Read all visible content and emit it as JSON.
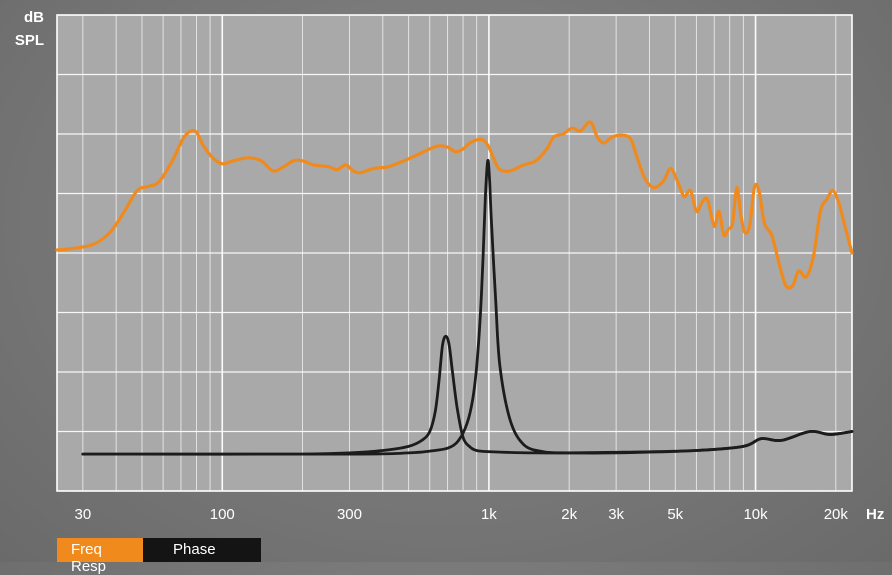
{
  "chart_data": {
    "type": "line",
    "xscale": "log",
    "xlim": [
      24,
      23000
    ],
    "ylim": [
      0,
      8
    ],
    "grid": true,
    "ylabel_lines": [
      "dB",
      "SPL"
    ],
    "xunit": "Hz",
    "xticks": [
      {
        "value": 30,
        "label": "30"
      },
      {
        "value": 100,
        "label": "100"
      },
      {
        "value": 300,
        "label": "300"
      },
      {
        "value": 1000,
        "label": "1k"
      },
      {
        "value": 2000,
        "label": "2k"
      },
      {
        "value": 3000,
        "label": "3k"
      },
      {
        "value": 5000,
        "label": "5k"
      },
      {
        "value": 10000,
        "label": "10k"
      },
      {
        "value": 20000,
        "label": "20k"
      }
    ],
    "series": [
      {
        "color": "#f08a1c",
        "points": [
          [
            24,
            4.05
          ],
          [
            28,
            4.08
          ],
          [
            33,
            4.15
          ],
          [
            38,
            4.35
          ],
          [
            43,
            4.7
          ],
          [
            48,
            5.05
          ],
          [
            53,
            5.12
          ],
          [
            58,
            5.2
          ],
          [
            65,
            5.55
          ],
          [
            72,
            5.95
          ],
          [
            79,
            6.05
          ],
          [
            85,
            5.8
          ],
          [
            92,
            5.6
          ],
          [
            100,
            5.5
          ],
          [
            110,
            5.55
          ],
          [
            125,
            5.6
          ],
          [
            140,
            5.55
          ],
          [
            155,
            5.38
          ],
          [
            170,
            5.45
          ],
          [
            185,
            5.55
          ],
          [
            200,
            5.55
          ],
          [
            220,
            5.48
          ],
          [
            250,
            5.45
          ],
          [
            270,
            5.4
          ],
          [
            290,
            5.48
          ],
          [
            310,
            5.38
          ],
          [
            330,
            5.35
          ],
          [
            370,
            5.42
          ],
          [
            420,
            5.45
          ],
          [
            480,
            5.55
          ],
          [
            540,
            5.65
          ],
          [
            600,
            5.75
          ],
          [
            650,
            5.8
          ],
          [
            700,
            5.78
          ],
          [
            750,
            5.7
          ],
          [
            800,
            5.75
          ],
          [
            850,
            5.85
          ],
          [
            900,
            5.9
          ],
          [
            950,
            5.9
          ],
          [
            1000,
            5.78
          ],
          [
            1050,
            5.55
          ],
          [
            1100,
            5.4
          ],
          [
            1200,
            5.38
          ],
          [
            1350,
            5.48
          ],
          [
            1500,
            5.55
          ],
          [
            1650,
            5.75
          ],
          [
            1750,
            5.95
          ],
          [
            1900,
            6.0
          ],
          [
            2050,
            6.1
          ],
          [
            2200,
            6.05
          ],
          [
            2400,
            6.2
          ],
          [
            2550,
            5.95
          ],
          [
            2700,
            5.85
          ],
          [
            2900,
            5.95
          ],
          [
            3150,
            5.98
          ],
          [
            3400,
            5.92
          ],
          [
            3600,
            5.6
          ],
          [
            3850,
            5.25
          ],
          [
            4150,
            5.1
          ],
          [
            4500,
            5.2
          ],
          [
            4800,
            5.42
          ],
          [
            5100,
            5.2
          ],
          [
            5400,
            4.95
          ],
          [
            5700,
            5.05
          ],
          [
            6000,
            4.7
          ],
          [
            6300,
            4.85
          ],
          [
            6600,
            4.9
          ],
          [
            7000,
            4.45
          ],
          [
            7300,
            4.7
          ],
          [
            7600,
            4.3
          ],
          [
            7900,
            4.4
          ],
          [
            8200,
            4.5
          ],
          [
            8500,
            5.1
          ],
          [
            8800,
            4.65
          ],
          [
            9100,
            4.35
          ],
          [
            9500,
            4.45
          ],
          [
            9900,
            5.1
          ],
          [
            10300,
            5.05
          ],
          [
            10800,
            4.5
          ],
          [
            11500,
            4.3
          ],
          [
            12300,
            3.8
          ],
          [
            13000,
            3.45
          ],
          [
            13800,
            3.45
          ],
          [
            14500,
            3.7
          ],
          [
            15500,
            3.6
          ],
          [
            16500,
            3.95
          ],
          [
            17500,
            4.7
          ],
          [
            18500,
            4.9
          ],
          [
            19500,
            5.05
          ],
          [
            20500,
            4.85
          ],
          [
            21500,
            4.5
          ],
          [
            23000,
            4.0
          ]
        ]
      },
      {
        "color": "#1c1c1c",
        "points": [
          [
            30,
            0.62
          ],
          [
            100,
            0.62
          ],
          [
            200,
            0.62
          ],
          [
            300,
            0.64
          ],
          [
            400,
            0.68
          ],
          [
            500,
            0.75
          ],
          [
            560,
            0.85
          ],
          [
            600,
            1.0
          ],
          [
            630,
            1.35
          ],
          [
            650,
            1.85
          ],
          [
            670,
            2.45
          ],
          [
            690,
            2.6
          ],
          [
            710,
            2.45
          ],
          [
            730,
            2.0
          ],
          [
            760,
            1.4
          ],
          [
            800,
            0.9
          ],
          [
            850,
            0.74
          ],
          [
            900,
            0.68
          ],
          [
            1000,
            0.66
          ],
          [
            1500,
            0.64
          ],
          [
            3000,
            0.65
          ],
          [
            6000,
            0.68
          ],
          [
            9000,
            0.75
          ],
          [
            10500,
            0.88
          ],
          [
            12500,
            0.85
          ],
          [
            16000,
            1.0
          ],
          [
            19000,
            0.95
          ],
          [
            23000,
            1.0
          ]
        ]
      },
      {
        "color": "#1c1c1c",
        "points": [
          [
            30,
            0.62
          ],
          [
            300,
            0.62
          ],
          [
            500,
            0.64
          ],
          [
            600,
            0.67
          ],
          [
            700,
            0.72
          ],
          [
            770,
            0.85
          ],
          [
            830,
            1.15
          ],
          [
            870,
            1.55
          ],
          [
            900,
            2.1
          ],
          [
            930,
            3.0
          ],
          [
            950,
            3.9
          ],
          [
            970,
            4.95
          ],
          [
            990,
            5.55
          ],
          [
            1005,
            5.25
          ],
          [
            1020,
            4.6
          ],
          [
            1060,
            3.2
          ],
          [
            1100,
            2.1
          ],
          [
            1200,
            1.2
          ],
          [
            1350,
            0.78
          ],
          [
            1600,
            0.66
          ],
          [
            2000,
            0.64
          ],
          [
            3000,
            0.64
          ],
          [
            6000,
            0.68
          ],
          [
            9000,
            0.75
          ],
          [
            10500,
            0.88
          ],
          [
            12500,
            0.85
          ],
          [
            16000,
            1.0
          ],
          [
            19000,
            0.95
          ],
          [
            23000,
            1.0
          ]
        ]
      }
    ]
  },
  "legend": {
    "freq_label": "Freq Resp",
    "phase_label": "Phase"
  }
}
